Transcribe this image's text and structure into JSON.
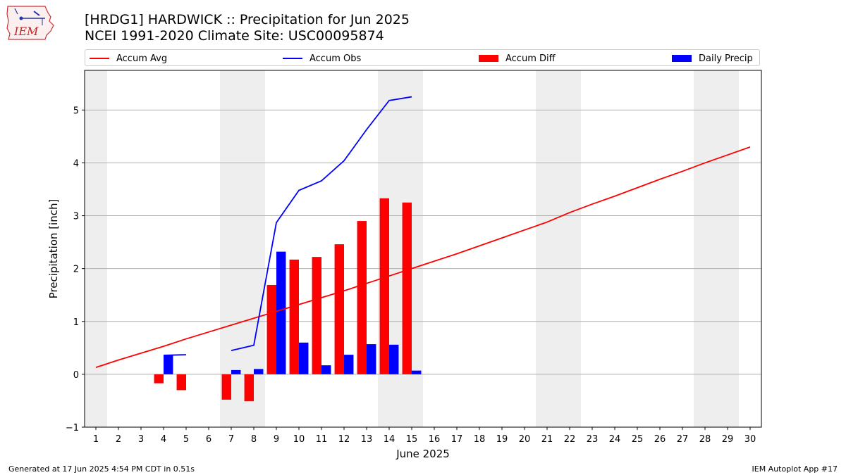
{
  "header": {
    "title_line1": "[HRDG1] HARDWICK :: Precipitation for Jun 2025",
    "title_line2": "NCEI 1991-2020 Climate Site: USC00095874"
  },
  "logo": {
    "text": "IEM"
  },
  "legend": {
    "items": [
      {
        "label": "Accum Avg",
        "kind": "line",
        "color": "#ff0000"
      },
      {
        "label": "Accum Obs",
        "kind": "line",
        "color": "#0000ff"
      },
      {
        "label": "Accum Diff",
        "kind": "bar",
        "color": "#ff0000"
      },
      {
        "label": "Daily Precip",
        "kind": "bar",
        "color": "#0000ff"
      }
    ]
  },
  "footer": {
    "left": "Generated at 17 Jun 2025 4:54 PM CDT in 0.51s",
    "right": "IEM Autoplot App #17"
  },
  "chart_data": {
    "type": "bar",
    "xlabel": "June 2025",
    "ylabel": "Precipitation [inch]",
    "xlim": [
      0.5,
      30.5
    ],
    "ylim": [
      -1,
      5.75
    ],
    "yticks": [
      -1,
      0,
      1,
      2,
      3,
      4,
      5
    ],
    "ytick_labels": [
      "−1",
      "0",
      "1",
      "2",
      "3",
      "4",
      "5"
    ],
    "categories": [
      "1",
      "2",
      "3",
      "4",
      "5",
      "6",
      "7",
      "8",
      "9",
      "10",
      "11",
      "12",
      "13",
      "14",
      "15",
      "16",
      "17",
      "18",
      "19",
      "20",
      "21",
      "22",
      "23",
      "24",
      "25",
      "26",
      "27",
      "28",
      "29",
      "30"
    ],
    "weekend_shading": [
      [
        0.5,
        1.5
      ],
      [
        6.5,
        8.5
      ],
      [
        13.5,
        15.5
      ],
      [
        20.5,
        22.5
      ],
      [
        27.5,
        29.5
      ]
    ],
    "grid": "y",
    "legend_position": "top",
    "series": [
      {
        "name": "Accum Avg",
        "kind": "line",
        "color": "#ff0000",
        "x": [
          1,
          2,
          3,
          4,
          5,
          6,
          7,
          8,
          9,
          10,
          11,
          12,
          13,
          14,
          15,
          16,
          17,
          18,
          19,
          20,
          21,
          22,
          23,
          24,
          25,
          26,
          27,
          28,
          29,
          30
        ],
        "values": [
          0.13,
          0.27,
          0.4,
          0.53,
          0.67,
          0.8,
          0.93,
          1.06,
          1.19,
          1.32,
          1.45,
          1.58,
          1.72,
          1.86,
          2.0,
          2.14,
          2.28,
          2.43,
          2.58,
          2.73,
          2.88,
          3.06,
          3.22,
          3.37,
          3.53,
          3.69,
          3.84,
          4.0,
          4.15,
          4.3
        ]
      },
      {
        "name": "Accum Obs",
        "kind": "line",
        "color": "#0000ff",
        "segments": [
          {
            "x": [
              4,
              5
            ],
            "values": [
              0.36,
              0.37
            ]
          },
          {
            "x": [
              7,
              8,
              9,
              10,
              11,
              12,
              13,
              14,
              15
            ],
            "values": [
              0.45,
              0.55,
              2.87,
              3.48,
              3.66,
              4.04,
              4.63,
              5.18,
              5.25
            ]
          }
        ]
      },
      {
        "name": "Accum Diff",
        "kind": "bar",
        "color": "#ff0000",
        "x": [
          4,
          5,
          7,
          8,
          9,
          10,
          11,
          12,
          13,
          14,
          15
        ],
        "values": [
          -0.17,
          -0.3,
          -0.48,
          -0.51,
          1.69,
          2.17,
          2.22,
          2.46,
          2.9,
          3.33,
          3.25
        ]
      },
      {
        "name": "Daily Precip",
        "kind": "bar",
        "color": "#0000ff",
        "x": [
          4,
          7,
          8,
          9,
          10,
          11,
          12,
          13,
          14,
          15
        ],
        "values": [
          0.36,
          0.08,
          0.1,
          2.32,
          0.6,
          0.17,
          0.37,
          0.57,
          0.56,
          0.07
        ]
      }
    ]
  }
}
